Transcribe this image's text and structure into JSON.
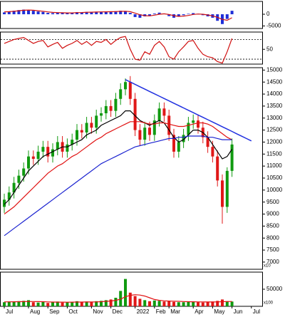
{
  "chart_data": [
    {
      "type": "bar",
      "color": "#1f2fd8",
      "ylim": [
        -6100,
        5500
      ],
      "yticks": [
        0,
        -5000
      ],
      "values": [
        800,
        1200,
        1500,
        1800,
        2000,
        1800,
        1500,
        1200,
        1000,
        600,
        500,
        700,
        600,
        500,
        600,
        900,
        800,
        1000,
        900,
        1100,
        1000,
        1200,
        1100,
        1300,
        1500,
        1400,
        600,
        -1200,
        -1500,
        -900,
        -600,
        300,
        700,
        300,
        -800,
        -1500,
        -1000,
        -400,
        200,
        500,
        200,
        -400,
        -900,
        -1500,
        -2800,
        -4200,
        -2000,
        1500,
        null,
        null,
        null,
        null
      ],
      "series": [
        {
          "color": "#d01010",
          "values": [
            1000,
            1100,
            1300,
            1500,
            1700,
            1800,
            1700,
            1500,
            1300,
            1000,
            800,
            700,
            650,
            600,
            600,
            700,
            750,
            850,
            900,
            950,
            1000,
            1050,
            1100,
            1150,
            1250,
            1300,
            1100,
            500,
            -200,
            -600,
            -700,
            -400,
            0,
            200,
            -100,
            -600,
            -900,
            -800,
            -500,
            -100,
            100,
            0,
            -300,
            -700,
            -1300,
            -2200,
            -2600,
            -1500,
            null,
            null,
            null,
            null
          ]
        }
      ]
    },
    {
      "type": "line",
      "ylim": [
        20,
        85
      ],
      "yticks": [
        50
      ],
      "hlines": [
        30,
        70
      ],
      "series": [
        {
          "color": "#d01010",
          "values": [
            62,
            66,
            70,
            72,
            74,
            68,
            62,
            66,
            68,
            55,
            60,
            64,
            52,
            58,
            62,
            68,
            60,
            66,
            58,
            66,
            64,
            70,
            60,
            68,
            74,
            76,
            50,
            30,
            28,
            45,
            40,
            58,
            66,
            55,
            35,
            30,
            45,
            55,
            66,
            68,
            52,
            40,
            35,
            33,
            25,
            22,
            45,
            72,
            null,
            null,
            null,
            null
          ]
        }
      ]
    },
    {
      "type": "candlestick",
      "ylim": [
        6700,
        15100
      ],
      "yticks": [
        7000,
        7500,
        8000,
        8500,
        9000,
        9500,
        10000,
        10500,
        11000,
        11500,
        12000,
        12500,
        13000,
        13500,
        14000,
        14500,
        15000
      ],
      "scale_label": "x10",
      "up_color": "#109a10",
      "down_color": "#e01818",
      "open": [
        9300,
        9600,
        9900,
        10300,
        10600,
        10900,
        11400,
        11300,
        11600,
        11800,
        11400,
        11700,
        12000,
        11600,
        11900,
        12100,
        12500,
        12400,
        12800,
        12600,
        13100,
        13200,
        13500,
        13300,
        13800,
        14200,
        14500,
        13800,
        12500,
        12100,
        12600,
        12300,
        12900,
        13400,
        13100,
        12300,
        11600,
        12000,
        12300,
        12800,
        12900,
        12600,
        12200,
        11800,
        11400,
        10400,
        9300,
        10800,
        null,
        null,
        null,
        null
      ],
      "high": [
        9850,
        10150,
        10550,
        10850,
        11150,
        11650,
        11650,
        11850,
        12050,
        12050,
        11950,
        12250,
        12250,
        12150,
        12350,
        12750,
        12750,
        13050,
        13050,
        13350,
        13450,
        13750,
        13750,
        14050,
        14450,
        14650,
        14750,
        14050,
        12750,
        12850,
        12850,
        13150,
        13650,
        13650,
        13350,
        12550,
        12250,
        12550,
        13050,
        13150,
        13150,
        12850,
        12450,
        12050,
        11650,
        10650,
        10950,
        12150,
        null,
        null,
        null,
        null
      ],
      "low": [
        9050,
        9350,
        9650,
        10050,
        10350,
        10650,
        11050,
        11050,
        11350,
        11150,
        11150,
        11450,
        11350,
        11350,
        11650,
        11850,
        12150,
        12150,
        12350,
        12350,
        12850,
        12950,
        13050,
        13050,
        13550,
        13950,
        13550,
        12250,
        11850,
        11850,
        12050,
        12050,
        12650,
        12850,
        12050,
        11350,
        11350,
        11750,
        12050,
        12550,
        12350,
        11950,
        11550,
        11150,
        10150,
        8600,
        9050,
        10550,
        null,
        null,
        null,
        null
      ],
      "close": [
        9600,
        9900,
        10300,
        10600,
        10900,
        11400,
        11300,
        11600,
        11800,
        11400,
        11700,
        12000,
        11600,
        11900,
        12100,
        12500,
        12400,
        12800,
        12600,
        13100,
        13200,
        13500,
        13300,
        13800,
        14200,
        14500,
        13800,
        12500,
        12100,
        12600,
        12300,
        12900,
        13400,
        13100,
        12300,
        11600,
        12000,
        12300,
        12800,
        12900,
        12600,
        12200,
        11800,
        11400,
        10400,
        9300,
        10800,
        11900,
        null,
        null,
        null,
        null
      ],
      "series": [
        {
          "color": "#000000",
          "values": [
            9400,
            9600,
            9900,
            10200,
            10500,
            10800,
            11000,
            11200,
            11400,
            11500,
            11600,
            11700,
            11800,
            11800,
            11900,
            12000,
            12100,
            12300,
            12400,
            12500,
            12700,
            12800,
            12900,
            13000,
            13100,
            13300,
            13300,
            13100,
            12900,
            12800,
            12700,
            12800,
            12900,
            12800,
            12500,
            12200,
            12000,
            12100,
            12300,
            12500,
            12500,
            12400,
            12200,
            11900,
            11600,
            11300,
            11400,
            11700,
            null,
            null,
            null,
            null
          ]
        },
        {
          "color": "#e01010",
          "values": [
            9000,
            9150,
            9300,
            9500,
            9700,
            9900,
            10100,
            10300,
            10500,
            10700,
            10850,
            11000,
            11100,
            11250,
            11400,
            11500,
            11650,
            11800,
            11950,
            12100,
            12200,
            12350,
            12450,
            12550,
            12650,
            12750,
            12850,
            12850,
            12850,
            12800,
            12750,
            12750,
            12800,
            12800,
            12750,
            12700,
            12650,
            12650,
            12700,
            12750,
            12800,
            12800,
            12750,
            12650,
            12500,
            12350,
            12200,
            12100,
            null,
            null,
            null,
            null
          ]
        },
        {
          "color": "#1a22d0",
          "values": [
            8100,
            8250,
            8400,
            8550,
            8700,
            8850,
            9000,
            9150,
            9300,
            9450,
            9600,
            9750,
            9900,
            10050,
            10200,
            10350,
            10500,
            10650,
            10800,
            10950,
            11100,
            11200,
            11300,
            11400,
            11500,
            11600,
            11700,
            11800,
            11850,
            11900,
            11950,
            12000,
            12050,
            12100,
            12150,
            12150,
            12200,
            12200,
            12250,
            12250,
            12250,
            12250,
            12200,
            12200,
            12150,
            12100,
            12100,
            12100,
            null,
            null,
            null,
            null
          ]
        },
        {
          "color": "#2030e0",
          "values": [
            null,
            null,
            null,
            null,
            null,
            null,
            null,
            null,
            null,
            null,
            null,
            null,
            null,
            null,
            null,
            null,
            null,
            null,
            null,
            null,
            null,
            null,
            null,
            null,
            null,
            14600,
            14502,
            14404,
            14306,
            14208,
            14110,
            14012,
            13913,
            13815,
            13717,
            13619,
            13521,
            13423,
            13325,
            13227,
            13129,
            13031,
            12933,
            12835,
            12737,
            12638,
            12540,
            12442,
            12344,
            12246,
            12148,
            12050
          ]
        }
      ]
    },
    {
      "type": "bar",
      "ylim": [
        0,
        100000
      ],
      "yticks": [
        50000
      ],
      "scale_label": "x100",
      "color": "#109a10",
      "down_color": "#e01818",
      "categories": [
        "Jul",
        null,
        null,
        null,
        null,
        "Aug",
        null,
        null,
        null,
        "Sep",
        null,
        null,
        null,
        "Oct",
        null,
        null,
        null,
        null,
        "Nov",
        null,
        null,
        null,
        "Dec",
        null,
        null,
        null,
        null,
        "2022",
        null,
        null,
        null,
        "Feb",
        null,
        null,
        "Mar",
        null,
        null,
        null,
        null,
        "Apr",
        null,
        null,
        null,
        "May",
        null,
        null,
        null,
        "Jun",
        null,
        null,
        null,
        "Jul"
      ],
      "values": [
        12000,
        14000,
        13000,
        15000,
        16000,
        18000,
        12000,
        11000,
        13000,
        10000,
        12000,
        14000,
        11000,
        12000,
        13000,
        15000,
        12000,
        14000,
        13000,
        15000,
        16000,
        18000,
        20000,
        25000,
        45000,
        80000,
        40000,
        30000,
        22000,
        18000,
        15000,
        17000,
        16000,
        14000,
        15000,
        13000,
        12000,
        12000,
        14000,
        13000,
        12000,
        11000,
        12000,
        14000,
        16000,
        20000,
        15000,
        14000,
        null,
        null,
        null,
        null
      ],
      "series": [
        {
          "color": "#e01010",
          "values": [
            13000,
            13200,
            13300,
            13500,
            13800,
            14200,
            14000,
            13800,
            13500,
            13000,
            12500,
            12300,
            12200,
            12100,
            12200,
            12400,
            12500,
            12700,
            12800,
            13000,
            13500,
            14500,
            15500,
            17500,
            21000,
            28000,
            32000,
            34000,
            33000,
            30000,
            25000,
            20000,
            17500,
            16000,
            15500,
            15000,
            14500,
            14000,
            13500,
            13300,
            13000,
            12800,
            12700,
            12800,
            13000,
            13500,
            14000,
            14200,
            null,
            null,
            null,
            null
          ]
        }
      ]
    }
  ]
}
